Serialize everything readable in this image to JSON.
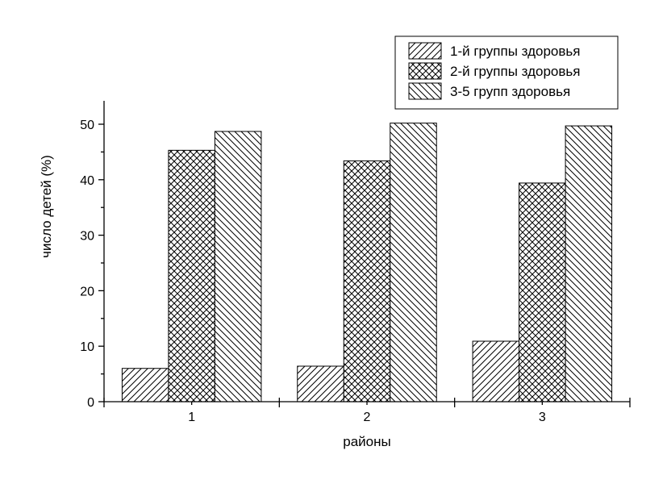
{
  "chart_data": {
    "type": "bar",
    "title": "",
    "xlabel": "районы",
    "ylabel": "число детей (%)",
    "categories": [
      "1",
      "2",
      "3"
    ],
    "ylim": [
      0,
      55
    ],
    "yticks": [
      0,
      10,
      20,
      30,
      40,
      50
    ],
    "grid": false,
    "legend_position": "top-right",
    "series": [
      {
        "name": "1-й группы здоровья",
        "values": [
          6.0,
          6.4,
          10.9
        ],
        "pattern": "diagonal-up"
      },
      {
        "name": "2-й группы здоровья",
        "values": [
          45.3,
          43.4,
          39.4
        ],
        "pattern": "crosshatch"
      },
      {
        "name": "3-5 групп здоровья",
        "values": [
          48.7,
          50.2,
          49.7
        ],
        "pattern": "diagonal-down"
      }
    ],
    "colors": {
      "fill": "#ffffff",
      "stroke": "#000000"
    }
  }
}
